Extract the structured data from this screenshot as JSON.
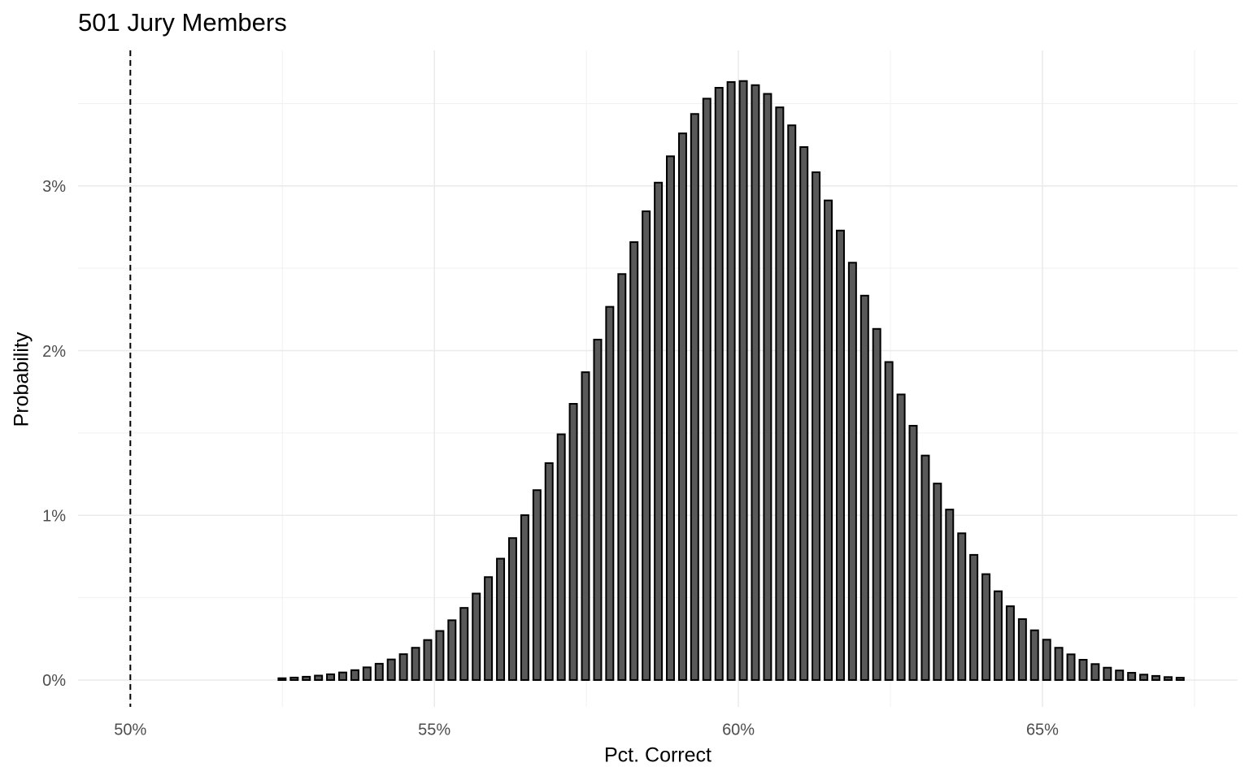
{
  "chart_data": {
    "type": "bar",
    "title": "501 Jury Members",
    "x_label": "Pct. Correct",
    "y_label": "Probability",
    "x": [
      52.495,
      52.695,
      52.894,
      53.094,
      53.293,
      53.493,
      53.693,
      53.892,
      54.092,
      54.291,
      54.491,
      54.691,
      54.89,
      55.09,
      55.289,
      55.489,
      55.689,
      55.888,
      56.088,
      56.287,
      56.487,
      56.687,
      56.886,
      57.086,
      57.285,
      57.485,
      57.685,
      57.884,
      58.084,
      58.283,
      58.483,
      58.683,
      58.882,
      59.082,
      59.281,
      59.481,
      59.681,
      59.88,
      60.08,
      60.279,
      60.479,
      60.679,
      60.878,
      61.078,
      61.277,
      61.477,
      61.677,
      61.876,
      62.076,
      62.275,
      62.475,
      62.675,
      62.874,
      63.074,
      63.273,
      63.473,
      63.673,
      63.872,
      64.072,
      64.271,
      64.471,
      64.671,
      64.87,
      65.07,
      65.269,
      65.469,
      65.669,
      65.868,
      66.068,
      66.267,
      66.467,
      66.667,
      66.866,
      67.066,
      67.265
    ],
    "values": [
      0.011,
      0.015,
      0.02,
      0.027,
      0.035,
      0.046,
      0.06,
      0.077,
      0.099,
      0.125,
      0.157,
      0.196,
      0.243,
      0.298,
      0.363,
      0.438,
      0.525,
      0.625,
      0.737,
      0.862,
      1.001,
      1.153,
      1.317,
      1.492,
      1.677,
      1.869,
      2.067,
      2.266,
      2.465,
      2.659,
      2.846,
      3.02,
      3.18,
      3.319,
      3.437,
      3.53,
      3.596,
      3.631,
      3.637,
      3.612,
      3.559,
      3.477,
      3.368,
      3.236,
      3.083,
      2.912,
      2.729,
      2.534,
      2.334,
      2.132,
      1.931,
      1.734,
      1.544,
      1.363,
      1.193,
      1.035,
      0.891,
      0.76,
      0.643,
      0.539,
      0.448,
      0.37,
      0.302,
      0.245,
      0.196,
      0.156,
      0.123,
      0.097,
      0.075,
      0.058,
      0.044,
      0.033,
      0.025,
      0.018,
      0.014
    ],
    "color": "#595959",
    "edge_color": "#000000",
    "xlim": [
      49.14,
      68.21
    ],
    "ylim": [
      -0.163,
      3.823
    ],
    "xticks": [
      {
        "value": 50,
        "label": "50%"
      },
      {
        "value": 55,
        "label": "55%"
      },
      {
        "value": 60,
        "label": "60%"
      },
      {
        "value": 65,
        "label": "65%"
      }
    ],
    "yticks": [
      {
        "value": 0,
        "label": "0%"
      },
      {
        "value": 1,
        "label": "1%"
      },
      {
        "value": 2,
        "label": "2%"
      },
      {
        "value": 3,
        "label": "3%"
      }
    ],
    "xminor": [
      52.5,
      57.5,
      62.5,
      67.5
    ],
    "yminor": [
      0.5,
      1.5,
      2.5,
      3.5
    ],
    "vline": 50,
    "grid": true
  }
}
